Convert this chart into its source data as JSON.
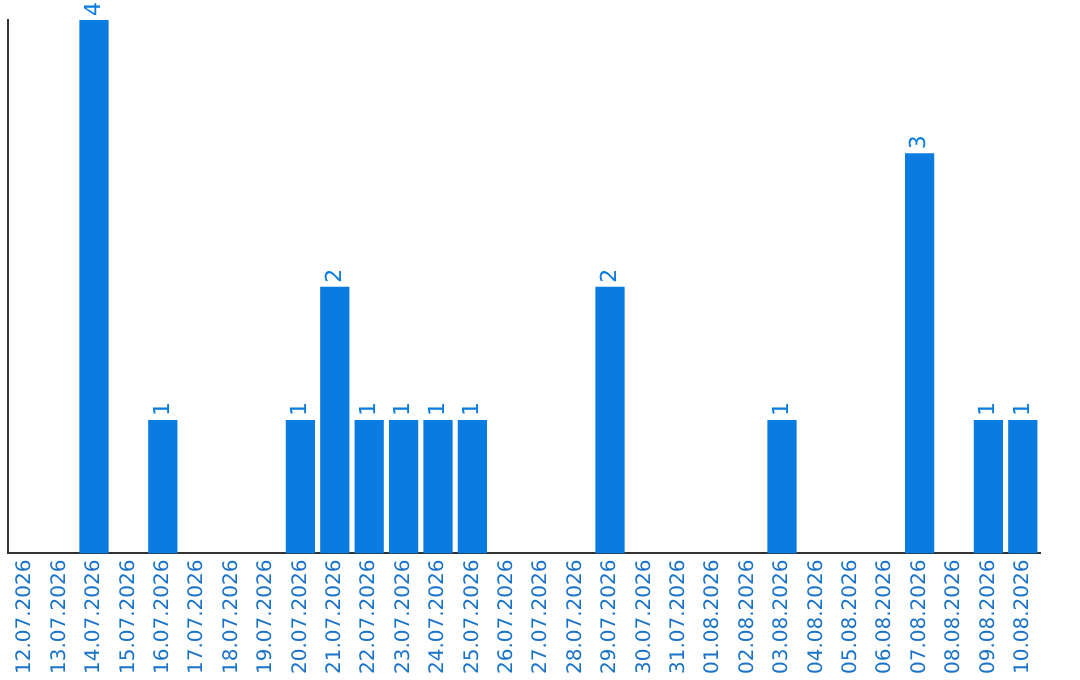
{
  "chart_data": {
    "type": "bar",
    "categories": [
      "12.07.2026",
      "13.07.2026",
      "14.07.2026",
      "15.07.2026",
      "16.07.2026",
      "17.07.2026",
      "18.07.2026",
      "19.07.2026",
      "20.07.2026",
      "21.07.2026",
      "22.07.2026",
      "23.07.2026",
      "24.07.2026",
      "25.07.2026",
      "26.07.2026",
      "27.07.2026",
      "28.07.2026",
      "29.07.2026",
      "30.07.2026",
      "31.07.2026",
      "01.08.2026",
      "02.08.2026",
      "03.08.2026",
      "04.08.2026",
      "05.08.2026",
      "06.08.2026",
      "07.08.2026",
      "08.08.2026",
      "09.08.2026",
      "10.08.2026"
    ],
    "values": [
      0,
      0,
      4,
      0,
      1,
      0,
      0,
      0,
      1,
      2,
      1,
      1,
      1,
      1,
      0,
      0,
      0,
      2,
      0,
      0,
      0,
      0,
      1,
      0,
      0,
      0,
      3,
      0,
      1,
      1
    ],
    "value_labels": [
      null,
      null,
      "4",
      null,
      "1",
      null,
      null,
      null,
      "1",
      "2",
      "1",
      "1",
      "1",
      "1",
      null,
      null,
      null,
      "2",
      null,
      null,
      null,
      null,
      "1",
      null,
      null,
      null,
      "3",
      null,
      "1",
      "1"
    ],
    "color": "#0a7be0",
    "grid": false,
    "legend": false,
    "tick_labels": "x"
  }
}
